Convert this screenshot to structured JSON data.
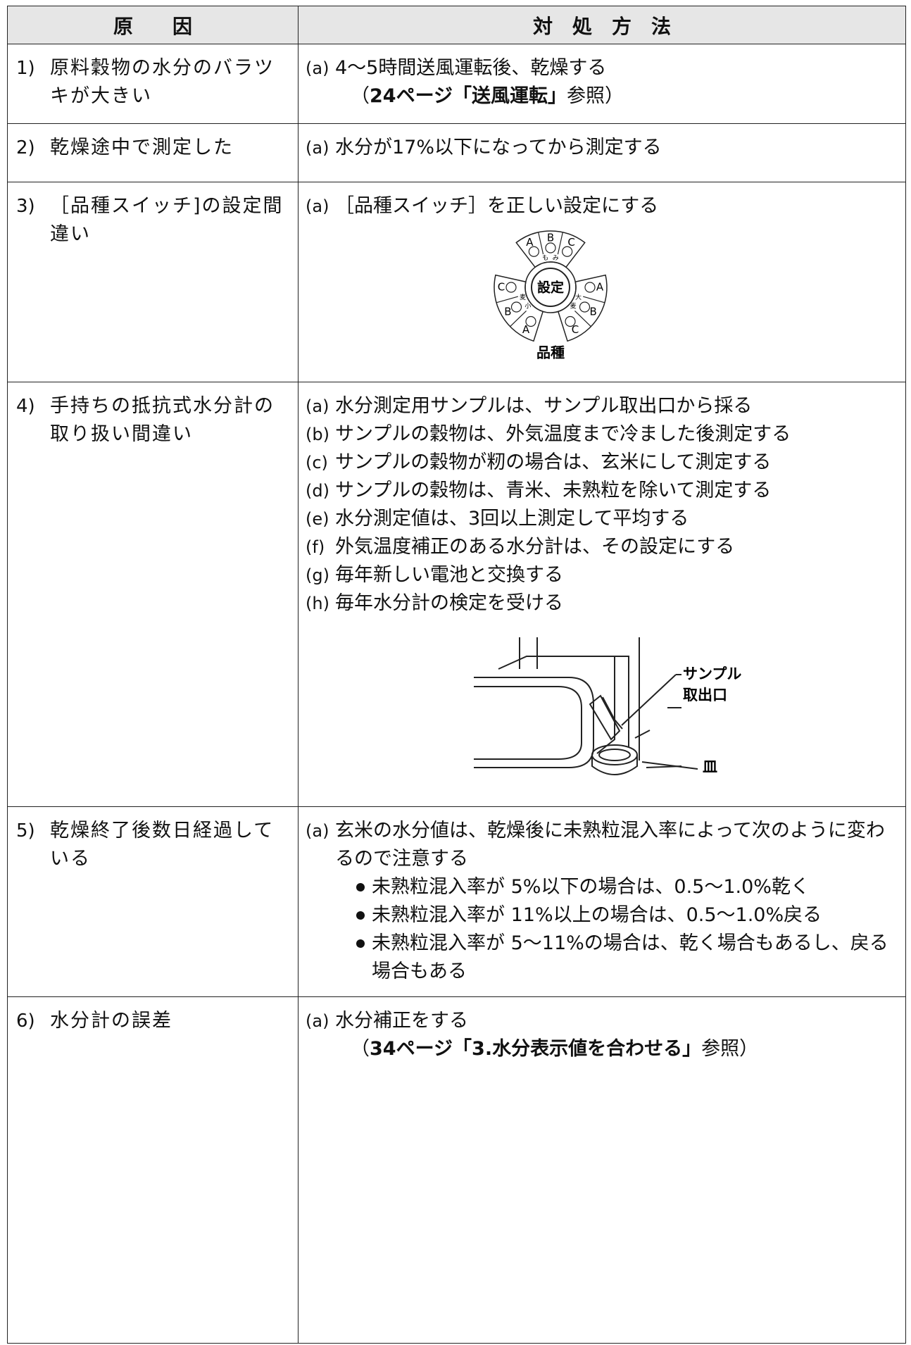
{
  "header": {
    "cause": "原　　因",
    "remedy": "対　処　方　法"
  },
  "rows": [
    {
      "number": "1)",
      "cause": "原料穀物の水分のバラツキが大きい",
      "remedies": [
        {
          "label": "(a)",
          "text": "4～5時間送風運転後、乾燥する"
        }
      ],
      "reference": {
        "open": "（",
        "bold": "24ページ「送風運転」",
        "close": "参照）"
      }
    },
    {
      "number": "2)",
      "cause": "乾燥途中で測定した",
      "remedies": [
        {
          "label": "(a)",
          "text": "水分が17%以下になってから測定する"
        }
      ]
    },
    {
      "number": "3)",
      "cause": "［品種スイッチ]の設定間違い",
      "remedies": [
        {
          "label": "(a)",
          "text": "［品種スイッチ］を正しい設定にする"
        }
      ],
      "dial": {
        "center_label": "設定",
        "caption": "品種",
        "top": {
          "letters": [
            "A",
            "B",
            "C"
          ],
          "marks": [
            "も",
            "み"
          ]
        },
        "left": {
          "letters": [
            "C",
            "B",
            "A"
          ],
          "marks": [
            "小",
            "麦"
          ]
        },
        "right": {
          "letters": [
            "A",
            "B",
            "C"
          ],
          "marks": [
            "大",
            "麦"
          ]
        }
      }
    },
    {
      "number": "4)",
      "cause": "手持ちの抵抗式水分計の取り扱い間違い",
      "remedies": [
        {
          "label": "(a)",
          "text": "水分測定用サンプルは、サンプル取出口から採る"
        },
        {
          "label": "(b)",
          "text": "サンプルの穀物は、外気温度まで冷ました後測定する"
        },
        {
          "label": "(c)",
          "text": "サンプルの穀物が籾の場合は、玄米にして測定する"
        },
        {
          "label": "(d)",
          "text": "サンプルの穀物は、青米、未熟粒を除いて測定する"
        },
        {
          "label": "(e)",
          "text": "水分測定値は、3回以上測定して平均する"
        },
        {
          "label": "(f)",
          "text": "外気温度補正のある水分計は、その設定にする"
        },
        {
          "label": "(g)",
          "text": "毎年新しい電池と交換する"
        },
        {
          "label": "(h)",
          "text": "毎年水分計の検定を受ける"
        }
      ],
      "figure": {
        "outlet": [
          "サンプル",
          "取出口"
        ],
        "dish": "皿"
      }
    },
    {
      "number": "5)",
      "cause": "乾燥終了後数日経過している",
      "remedies": [
        {
          "label": "(a)",
          "text": "玄米の水分値は、乾燥後に未熟粒混入率によって次のように変わるので注意する"
        }
      ],
      "bullets": [
        "未熟粒混入率が 5%以下の場合は、0.5～1.0%乾く",
        "未熟粒混入率が 11%以上の場合は、0.5～1.0%戻る",
        "未熟粒混入率が 5～11%の場合は、乾く場合もあるし、戻る場合もある"
      ]
    },
    {
      "number": "6)",
      "cause": "水分計の誤差",
      "remedies": [
        {
          "label": "(a)",
          "text": "水分補正をする"
        }
      ],
      "reference": {
        "open": "（",
        "bold": "34ページ「3.水分表示値を合わせる」",
        "close": "参照）"
      }
    }
  ]
}
